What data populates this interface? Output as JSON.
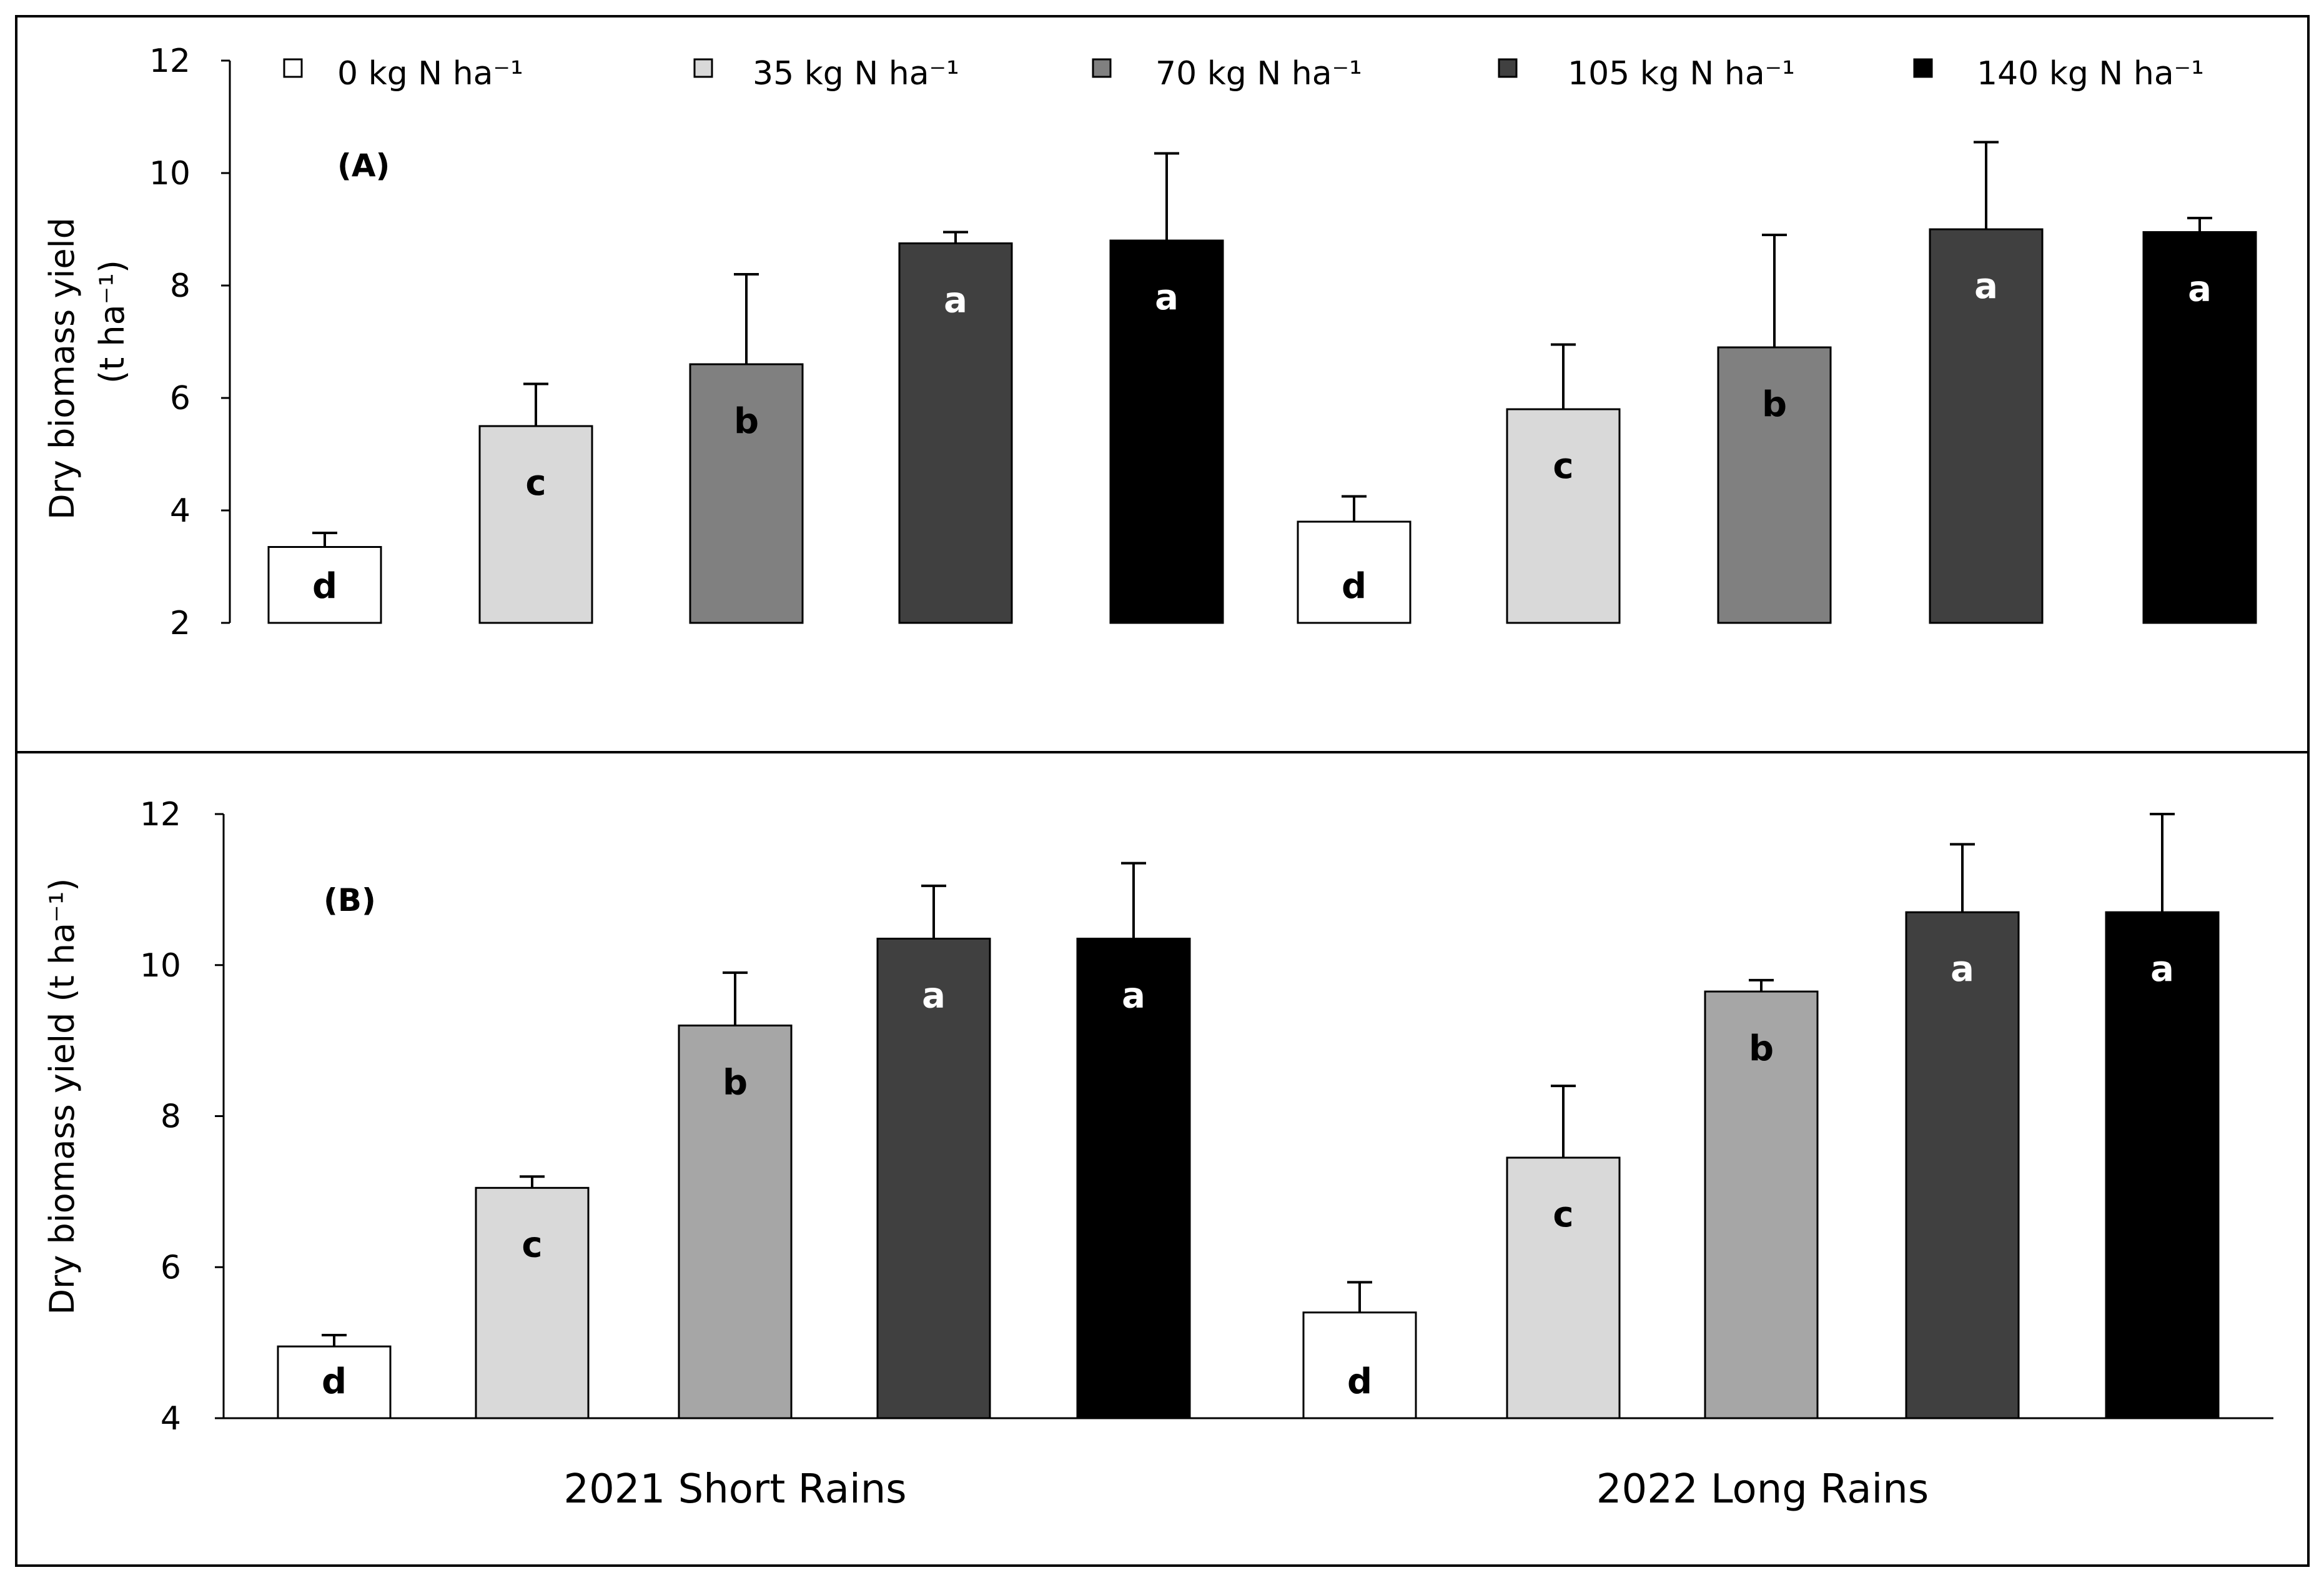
{
  "legend": {
    "items": [
      {
        "label": "0 kg N ha⁻¹",
        "color": "#ffffff"
      },
      {
        "label": "35 kg N ha⁻¹",
        "color": "#d9d9d9"
      },
      {
        "label": "70 kg N ha⁻¹",
        "color": "#808080"
      },
      {
        "label": "105 kg N ha⁻¹",
        "color": "#404040"
      },
      {
        "label": "140 kg N ha⁻¹",
        "color": "#000000"
      }
    ]
  },
  "chart_data": [
    {
      "type": "bar",
      "panel_label": "(A)",
      "title": "",
      "ylabel_line1": "Dry biomass yield",
      "ylabel_line2": "(t ha⁻¹)",
      "ylim": [
        2,
        12
      ],
      "yticks": [
        2,
        4,
        6,
        8,
        10,
        12
      ],
      "categories": [
        "2021 Short Rains",
        "2022 Long Rains"
      ],
      "colors": [
        "#ffffff",
        "#d9d9d9",
        "#808080",
        "#404040",
        "#000000"
      ],
      "series": [
        {
          "name": "0 kg N ha⁻¹",
          "values": [
            3.35,
            3.8
          ],
          "errors": [
            0.25,
            0.45
          ],
          "letters": [
            "d",
            "d"
          ]
        },
        {
          "name": "35 kg N ha⁻¹",
          "values": [
            5.5,
            5.8
          ],
          "errors": [
            0.75,
            1.15
          ],
          "letters": [
            "c",
            "c"
          ]
        },
        {
          "name": "70 kg N ha⁻¹",
          "values": [
            6.6,
            6.9
          ],
          "errors": [
            1.6,
            2.0
          ],
          "letters": [
            "b",
            "b"
          ]
        },
        {
          "name": "105 kg N ha⁻¹",
          "values": [
            8.75,
            9.0
          ],
          "errors": [
            0.2,
            1.55
          ],
          "letters": [
            "a",
            "a"
          ]
        },
        {
          "name": "140 kg N ha⁻¹",
          "values": [
            8.8,
            8.95
          ],
          "errors": [
            1.55,
            0.25
          ],
          "letters": [
            "a",
            "a"
          ]
        }
      ]
    },
    {
      "type": "bar",
      "panel_label": "(B)",
      "title": "",
      "ylabel_line1": "Dry biomass yield (t ha⁻¹)",
      "ylim": [
        4,
        12
      ],
      "yticks": [
        4,
        6,
        8,
        10,
        12
      ],
      "categories": [
        "2021 Short Rains",
        "2022 Long Rains"
      ],
      "colors": [
        "#ffffff",
        "#d9d9d9",
        "#a6a6a6",
        "#404040",
        "#000000"
      ],
      "series": [
        {
          "name": "0 kg N ha⁻¹",
          "values": [
            4.95,
            5.4
          ],
          "errors": [
            0.15,
            0.4
          ],
          "letters": [
            "d",
            "d"
          ]
        },
        {
          "name": "35 kg N ha⁻¹",
          "values": [
            7.05,
            7.45
          ],
          "errors": [
            0.15,
            0.95
          ],
          "letters": [
            "c",
            "c"
          ]
        },
        {
          "name": "70 kg N ha⁻¹",
          "values": [
            9.2,
            9.65
          ],
          "errors": [
            0.7,
            0.15
          ],
          "letters": [
            "b",
            "b"
          ]
        },
        {
          "name": "105 kg N ha⁻¹",
          "values": [
            10.35,
            10.7
          ],
          "errors": [
            0.7,
            0.9
          ],
          "letters": [
            "a",
            "a"
          ]
        },
        {
          "name": "140 kg N ha⁻¹",
          "values": [
            10.35,
            10.7
          ],
          "errors": [
            1.0,
            1.3
          ],
          "letters": [
            "a",
            "a"
          ]
        }
      ]
    }
  ]
}
